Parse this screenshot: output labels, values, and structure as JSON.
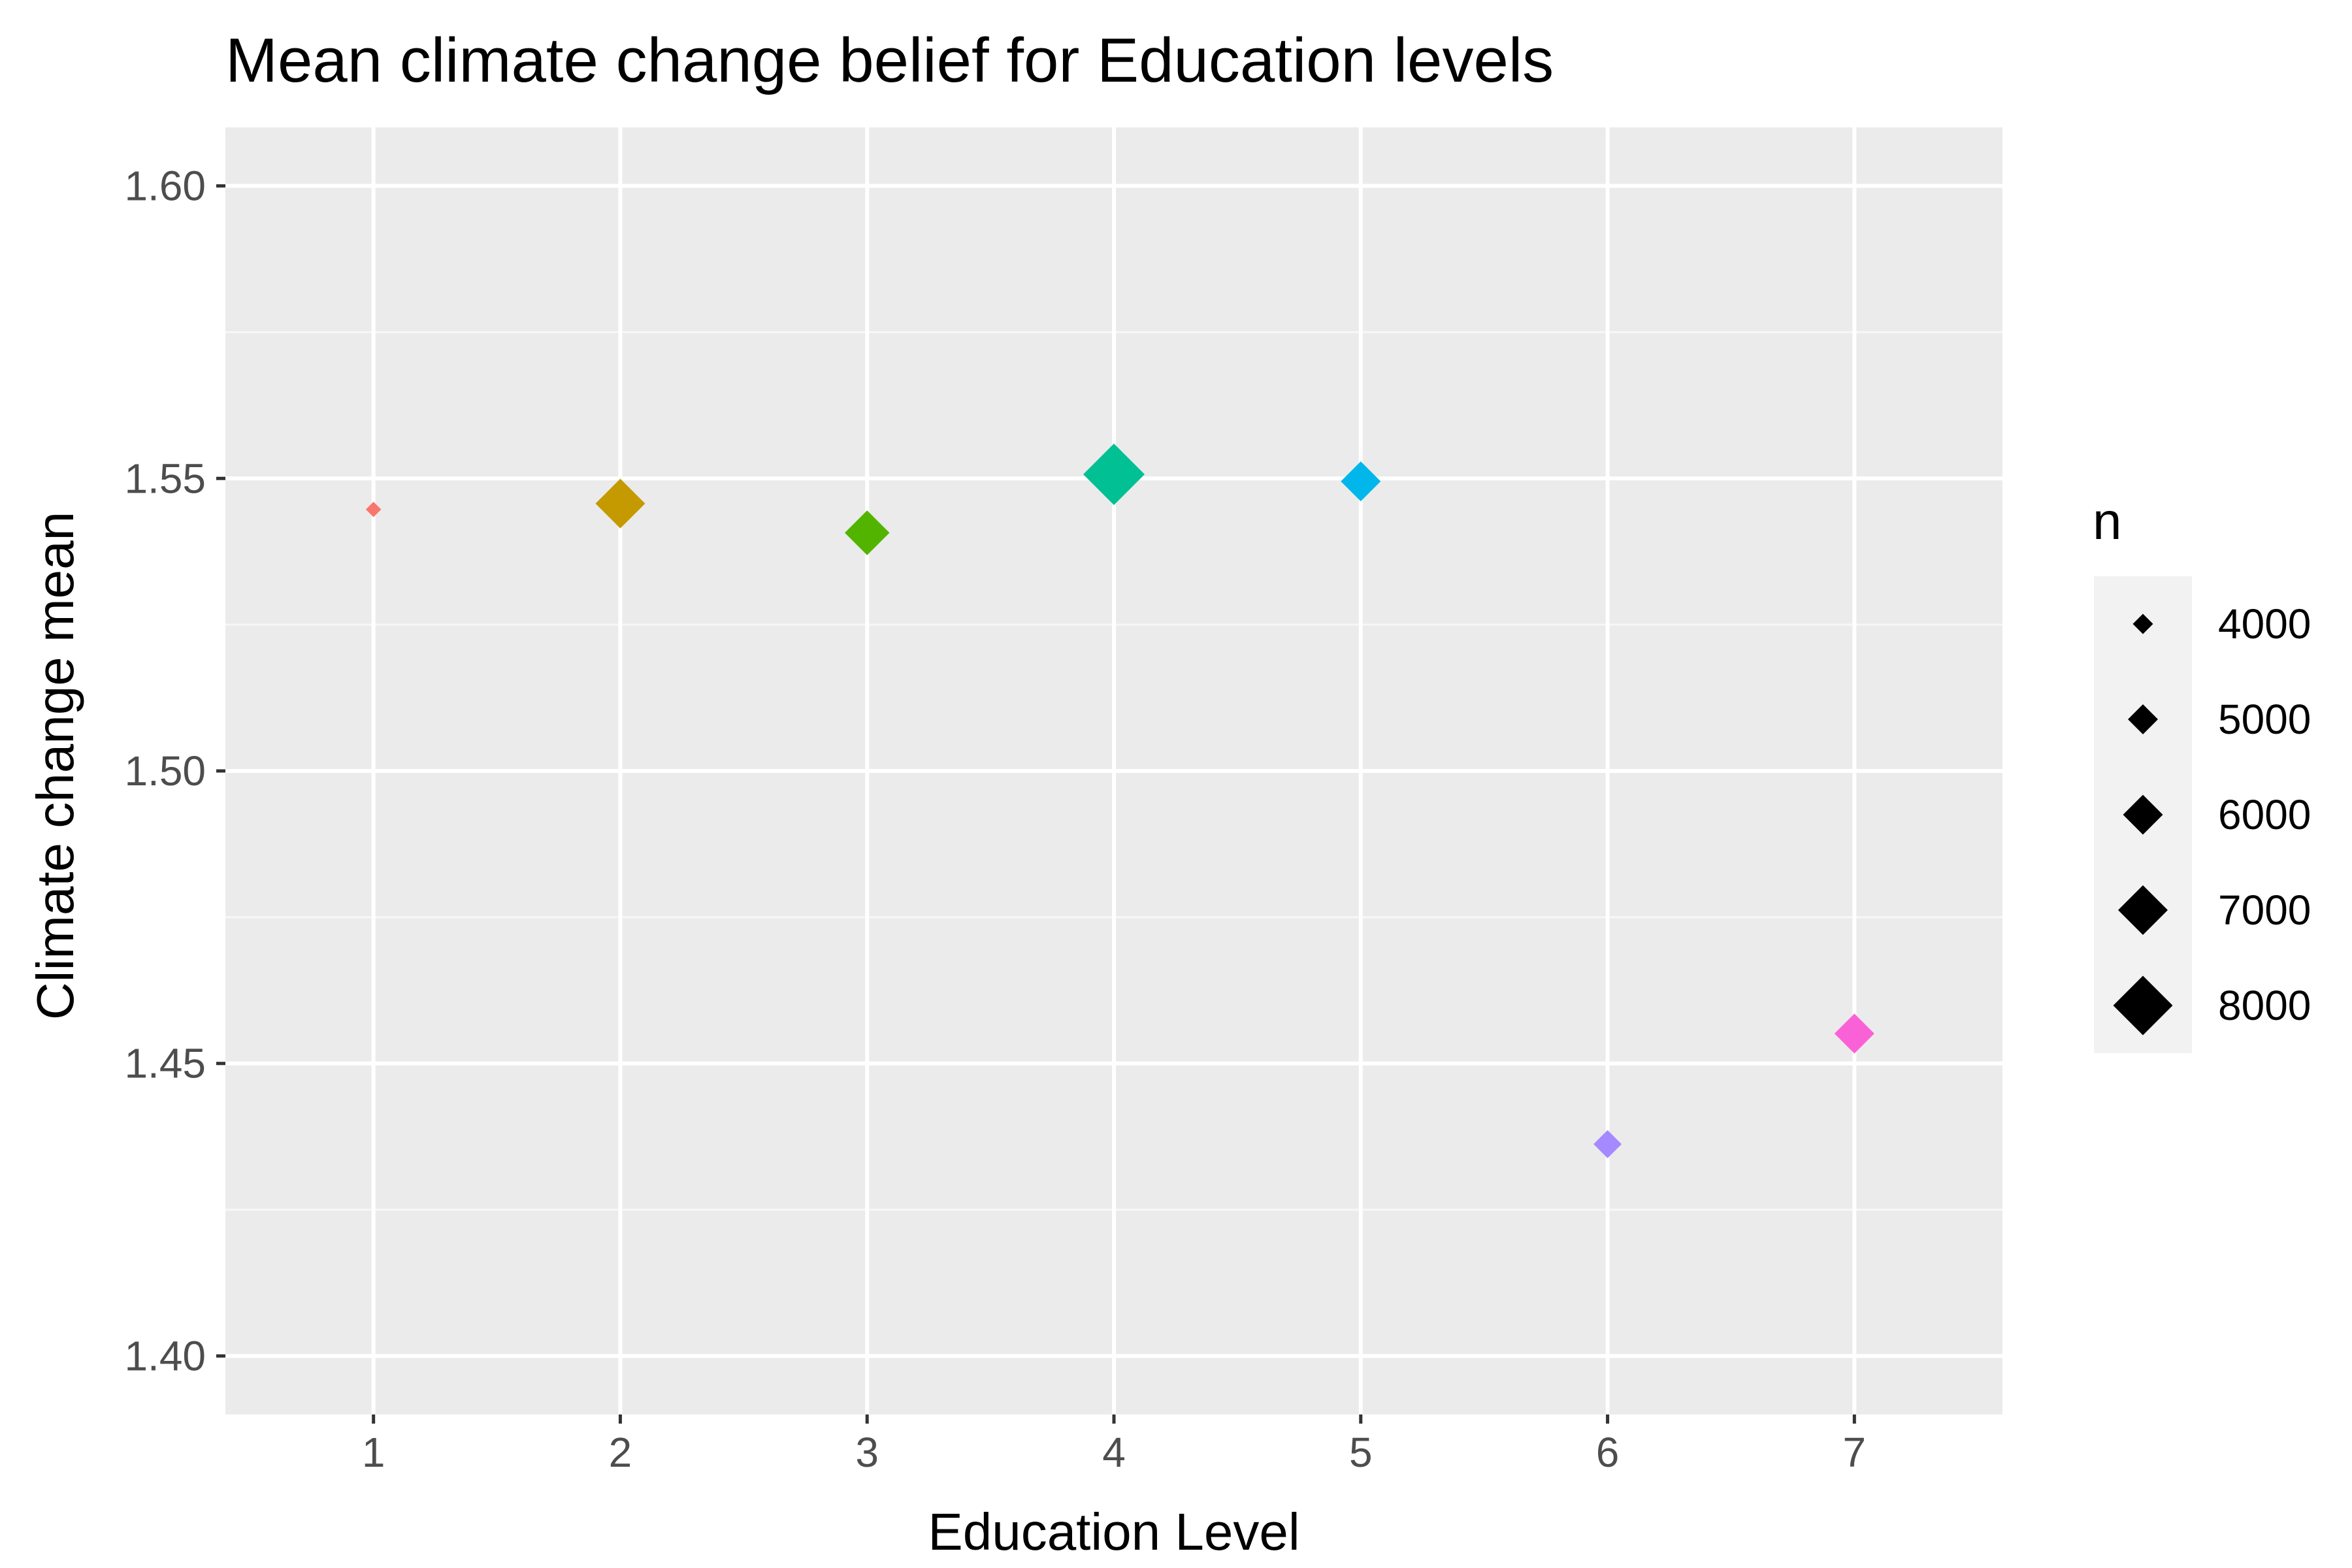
{
  "chart_data": {
    "type": "scatter",
    "title": "Mean climate change belief for Education levels",
    "xlabel": "Education Level",
    "ylabel": "Climate change mean",
    "xlim": [
      0.4,
      7.6
    ],
    "ylim": [
      1.39,
      1.61
    ],
    "x_ticks": [
      1,
      2,
      3,
      4,
      5,
      6,
      7
    ],
    "x_tick_labels": [
      "1",
      "2",
      "3",
      "4",
      "5",
      "6",
      "7"
    ],
    "y_ticks": [
      1.4,
      1.45,
      1.5,
      1.55,
      1.6
    ],
    "y_tick_labels": [
      "1.40",
      "1.45",
      "1.50",
      "1.55",
      "1.60"
    ],
    "y_minor_ticks": [
      1.425,
      1.475,
      1.525,
      1.575
    ],
    "grid": true,
    "marker": "diamond",
    "points": [
      {
        "x": 1,
        "y": 1.5447,
        "n": 3500,
        "color": "#F8766D"
      },
      {
        "x": 2,
        "y": 1.5457,
        "n": 7000,
        "color": "#C49A00"
      },
      {
        "x": 3,
        "y": 1.5407,
        "n": 6500,
        "color": "#53B400"
      },
      {
        "x": 4,
        "y": 1.5507,
        "n": 8200,
        "color": "#00C094"
      },
      {
        "x": 5,
        "y": 1.5495,
        "n": 6000,
        "color": "#00B6EB"
      },
      {
        "x": 6,
        "y": 1.4362,
        "n": 4800,
        "color": "#A58AFF"
      },
      {
        "x": 7,
        "y": 1.4551,
        "n": 6000,
        "color": "#FB61D7"
      }
    ],
    "legend": {
      "title": "n",
      "position": "right",
      "entries": [
        {
          "label": "4000",
          "n": 4000
        },
        {
          "label": "5000",
          "n": 5000
        },
        {
          "label": "6000",
          "n": 6000
        },
        {
          "label": "7000",
          "n": 7000
        },
        {
          "label": "8000",
          "n": 8000
        }
      ]
    },
    "colors": {
      "panel_background": "#EBEBEB",
      "grid_major": "#FFFFFF",
      "grid_minor": "#F7F7F7",
      "legend_key_background": "#F2F2F2",
      "legend_marker": "#000000",
      "tick_text": "#4D4D4D",
      "tick_mark": "#333333"
    }
  }
}
